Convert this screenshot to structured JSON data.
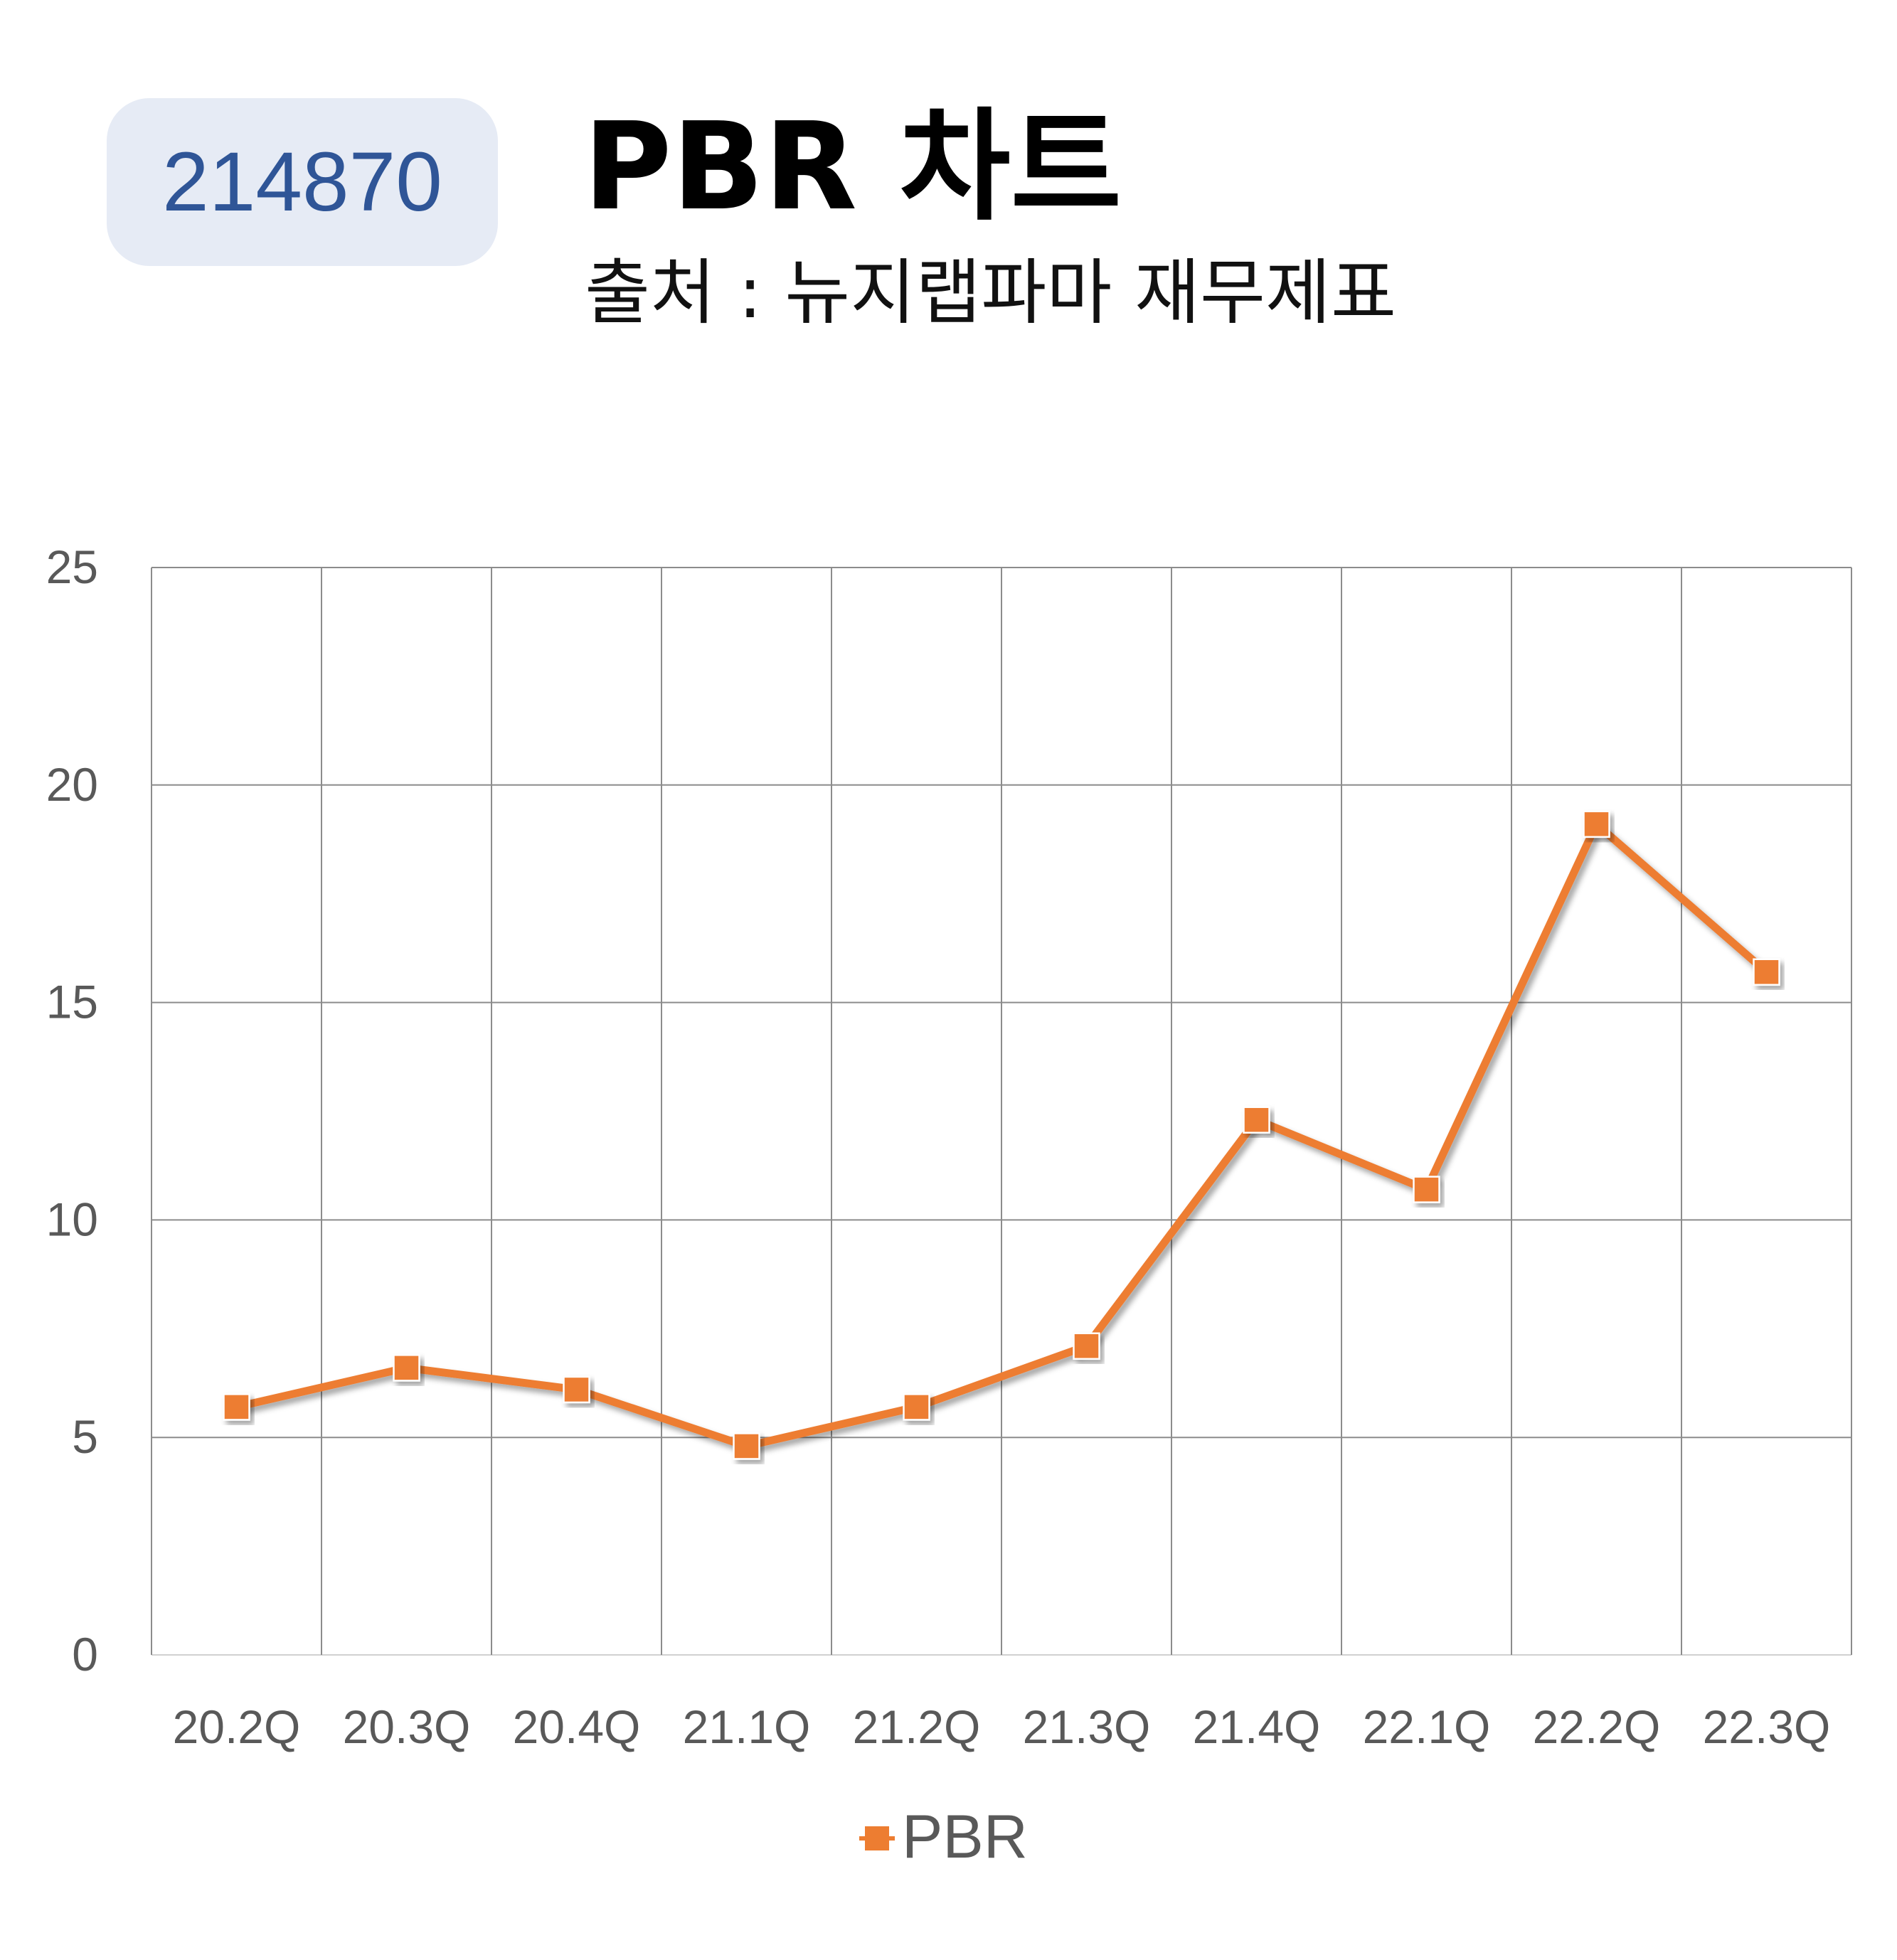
{
  "header": {
    "code": "214870",
    "title": "PBR 차트",
    "source": "출처 : 뉴지랩파마 재무제표"
  },
  "chart_data": {
    "type": "line",
    "categories": [
      "20.2Q",
      "20.3Q",
      "20.4Q",
      "21.1Q",
      "21.2Q",
      "21.3Q",
      "21.4Q",
      "22.1Q",
      "22.2Q",
      "22.3Q"
    ],
    "series": [
      {
        "name": "PBR",
        "values": [
          5.7,
          6.6,
          6.1,
          4.8,
          5.7,
          7.1,
          12.3,
          10.7,
          19.1,
          15.7
        ],
        "color": "#ed7d31"
      }
    ],
    "yticks": [
      "0",
      "5",
      "10",
      "15",
      "20",
      "25"
    ],
    "ylim": [
      0,
      25
    ],
    "grid": true,
    "legend": "bottom",
    "marker": "square"
  }
}
